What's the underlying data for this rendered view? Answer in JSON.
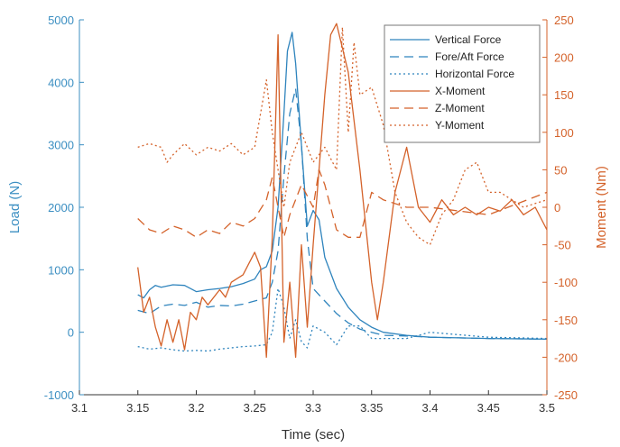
{
  "colors": {
    "left_axis": "#3c8fc2",
    "right_axis": "#d4622a",
    "force": "#2f84bd",
    "moment": "#d4622a",
    "axis_dark": "#333333"
  },
  "chart_data": {
    "type": "line",
    "title": "",
    "xlabel": "Time (sec)",
    "ylabel_left": "Load (N)",
    "ylabel_right": "Moment (Nm)",
    "xlim": [
      3.1,
      3.5
    ],
    "ylim_left": [
      -1000,
      5000
    ],
    "ylim_right": [
      -250,
      250
    ],
    "x_ticks": [
      "3.1",
      "3.15",
      "3.2",
      "3.25",
      "3.3",
      "3.35",
      "3.4",
      "3.45",
      "3.5"
    ],
    "y_left_ticks": [
      "-1000",
      "0",
      "1000",
      "2000",
      "3000",
      "4000",
      "5000"
    ],
    "y_right_ticks": [
      "-250",
      "-200",
      "-150",
      "-100",
      "-50",
      "0",
      "50",
      "100",
      "150",
      "200",
      "250"
    ],
    "grid": false,
    "legend_position": "top-right",
    "series": [
      {
        "name": "Vertical Force",
        "axis": "left",
        "color": "#2f84bd",
        "dash": "solid",
        "x": [
          3.15,
          3.155,
          3.16,
          3.165,
          3.17,
          3.18,
          3.19,
          3.2,
          3.21,
          3.22,
          3.23,
          3.24,
          3.25,
          3.255,
          3.26,
          3.265,
          3.27,
          3.275,
          3.278,
          3.282,
          3.285,
          3.29,
          3.295,
          3.3,
          3.305,
          3.31,
          3.32,
          3.33,
          3.34,
          3.35,
          3.36,
          3.38,
          3.4,
          3.45,
          3.5
        ],
        "y": [
          600,
          550,
          680,
          750,
          720,
          760,
          750,
          650,
          680,
          700,
          730,
          780,
          850,
          1000,
          1050,
          1300,
          2000,
          3500,
          4500,
          4800,
          4300,
          3000,
          1700,
          1950,
          1800,
          1200,
          700,
          400,
          200,
          80,
          0,
          -50,
          -80,
          -100,
          -110
        ]
      },
      {
        "name": "Fore/Aft Force",
        "axis": "left",
        "color": "#2f84bd",
        "dash": "10 6",
        "x": [
          3.15,
          3.16,
          3.17,
          3.18,
          3.19,
          3.2,
          3.21,
          3.22,
          3.23,
          3.24,
          3.25,
          3.26,
          3.265,
          3.27,
          3.275,
          3.28,
          3.285,
          3.29,
          3.295,
          3.3,
          3.31,
          3.32,
          3.33,
          3.34,
          3.35,
          3.36,
          3.38,
          3.4,
          3.45,
          3.5
        ],
        "y": [
          350,
          300,
          420,
          450,
          430,
          480,
          400,
          430,
          420,
          450,
          500,
          550,
          800,
          1300,
          2500,
          3500,
          3900,
          3000,
          1500,
          700,
          500,
          300,
          150,
          50,
          0,
          -50,
          -60,
          -80,
          -100,
          -110
        ]
      },
      {
        "name": "Horizontal Force",
        "axis": "left",
        "color": "#2f84bd",
        "dash": "2 3",
        "x": [
          3.15,
          3.16,
          3.17,
          3.18,
          3.19,
          3.2,
          3.21,
          3.22,
          3.23,
          3.24,
          3.25,
          3.26,
          3.265,
          3.27,
          3.275,
          3.28,
          3.285,
          3.29,
          3.295,
          3.3,
          3.31,
          3.32,
          3.33,
          3.34,
          3.35,
          3.38,
          3.4,
          3.45,
          3.5
        ],
        "y": [
          -230,
          -270,
          -250,
          -280,
          -300,
          -290,
          -300,
          -270,
          -250,
          -230,
          -220,
          -200,
          0,
          700,
          400,
          -100,
          200,
          -150,
          -250,
          100,
          0,
          -200,
          100,
          100,
          -100,
          -100,
          0,
          -80,
          -100
        ]
      },
      {
        "name": "X-Moment",
        "axis": "right",
        "color": "#d4622a",
        "dash": "solid",
        "x": [
          3.15,
          3.155,
          3.16,
          3.165,
          3.17,
          3.175,
          3.18,
          3.185,
          3.19,
          3.195,
          3.2,
          3.205,
          3.21,
          3.22,
          3.225,
          3.23,
          3.24,
          3.25,
          3.255,
          3.26,
          3.265,
          3.27,
          3.275,
          3.28,
          3.285,
          3.29,
          3.295,
          3.3,
          3.305,
          3.31,
          3.315,
          3.32,
          3.33,
          3.34,
          3.35,
          3.355,
          3.36,
          3.37,
          3.38,
          3.39,
          3.4,
          3.41,
          3.42,
          3.43,
          3.44,
          3.45,
          3.46,
          3.47,
          3.48,
          3.49,
          3.5
        ],
        "y": [
          -80,
          -140,
          -120,
          -160,
          -185,
          -150,
          -180,
          -150,
          -190,
          -140,
          -150,
          -120,
          -130,
          -110,
          -120,
          -100,
          -90,
          -60,
          -80,
          -200,
          -40,
          230,
          -180,
          -100,
          -200,
          -50,
          -160,
          -50,
          50,
          150,
          230,
          245,
          180,
          50,
          -100,
          -150,
          -100,
          20,
          80,
          0,
          -20,
          10,
          -10,
          0,
          -10,
          0,
          -5,
          10,
          -10,
          0,
          -30
        ]
      },
      {
        "name": "Z-Moment",
        "axis": "right",
        "color": "#d4622a",
        "dash": "10 6",
        "x": [
          3.15,
          3.16,
          3.17,
          3.18,
          3.19,
          3.2,
          3.21,
          3.22,
          3.23,
          3.24,
          3.25,
          3.26,
          3.265,
          3.27,
          3.275,
          3.28,
          3.29,
          3.3,
          3.305,
          3.31,
          3.32,
          3.33,
          3.34,
          3.35,
          3.36,
          3.38,
          3.4,
          3.45,
          3.5
        ],
        "y": [
          -15,
          -30,
          -35,
          -25,
          -30,
          -40,
          -30,
          -35,
          -20,
          -25,
          -15,
          10,
          40,
          0,
          -40,
          -10,
          30,
          0,
          50,
          30,
          -30,
          -40,
          -40,
          20,
          10,
          0,
          0,
          -10,
          20
        ]
      },
      {
        "name": "Y-Moment",
        "axis": "right",
        "color": "#d4622a",
        "dash": "2 3",
        "x": [
          3.15,
          3.16,
          3.17,
          3.175,
          3.18,
          3.19,
          3.2,
          3.21,
          3.22,
          3.23,
          3.24,
          3.25,
          3.26,
          3.265,
          3.27,
          3.275,
          3.28,
          3.29,
          3.3,
          3.31,
          3.32,
          3.325,
          3.33,
          3.335,
          3.34,
          3.35,
          3.36,
          3.37,
          3.38,
          3.39,
          3.4,
          3.41,
          3.42,
          3.43,
          3.44,
          3.45,
          3.46,
          3.47,
          3.48,
          3.49,
          3.5
        ],
        "y": [
          80,
          85,
          80,
          60,
          70,
          85,
          70,
          80,
          75,
          85,
          70,
          80,
          170,
          100,
          50,
          0,
          60,
          100,
          60,
          80,
          50,
          240,
          100,
          220,
          150,
          160,
          110,
          20,
          -20,
          -40,
          -50,
          -10,
          10,
          50,
          60,
          20,
          20,
          10,
          0,
          5,
          10
        ]
      }
    ]
  }
}
